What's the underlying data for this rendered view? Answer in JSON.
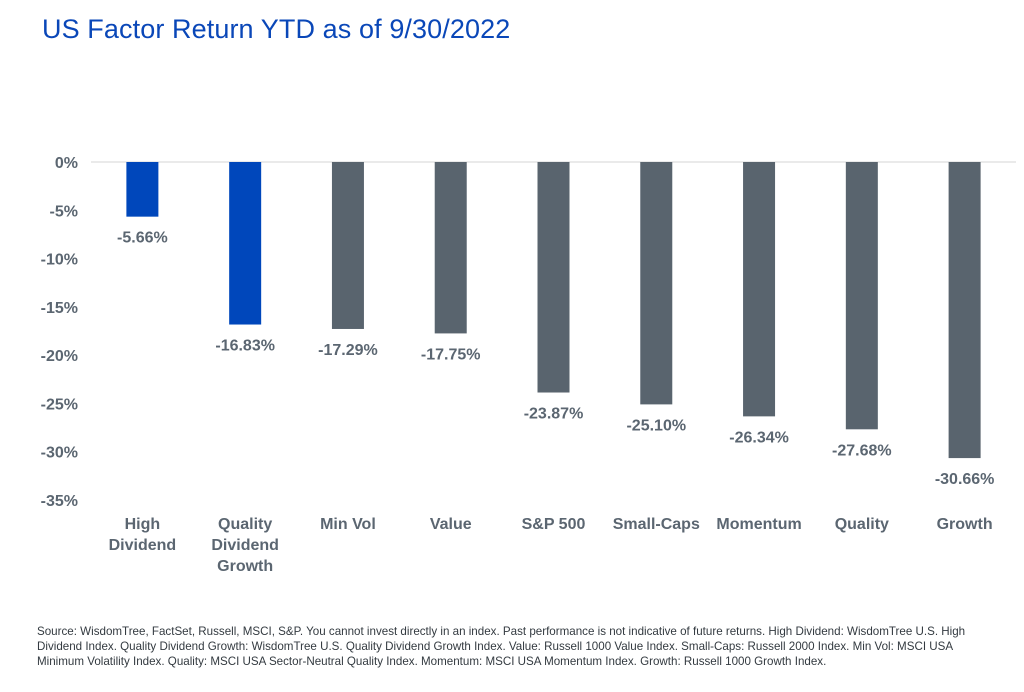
{
  "chart_data": {
    "type": "bar",
    "title": "US Factor Return YTD as of 9/30/2022",
    "xlabel": "",
    "ylabel": "",
    "ylim": [
      -35,
      0
    ],
    "yticks": [
      0,
      -5,
      -10,
      -15,
      -20,
      -25,
      -30,
      -35
    ],
    "ytick_labels": [
      "0%",
      "-5%",
      "-10%",
      "-15%",
      "-20%",
      "-25%",
      "-30%",
      "-35%"
    ],
    "grid": false,
    "legend": "none",
    "categories": [
      "High Dividend",
      "Quality Dividend Growth",
      "Min Vol",
      "Value",
      "S&P 500",
      "Small-Caps",
      "Momentum",
      "Quality",
      "Growth"
    ],
    "category_lines": [
      [
        "High",
        "Dividend"
      ],
      [
        "Quality",
        "Dividend",
        "Growth"
      ],
      [
        "Min Vol"
      ],
      [
        "Value"
      ],
      [
        "S&P 500"
      ],
      [
        "Small-Caps"
      ],
      [
        "Momentum"
      ],
      [
        "Quality"
      ],
      [
        "Growth"
      ]
    ],
    "values": [
      -5.66,
      -16.83,
      -17.29,
      -17.75,
      -23.87,
      -25.1,
      -26.34,
      -27.68,
      -30.66
    ],
    "data_labels": [
      "-5.66%",
      "-16.83%",
      "-17.29%",
      "-17.75%",
      "-23.87%",
      "-25.10%",
      "-26.34%",
      "-27.68%",
      "-30.66%"
    ],
    "bar_colors": [
      "#0047bb",
      "#0047bb",
      "#59646e",
      "#59646e",
      "#59646e",
      "#59646e",
      "#59646e",
      "#59646e",
      "#59646e"
    ]
  },
  "footnote": "Source: WisdomTree, FactSet, Russell, MSCI, S&P. You cannot invest directly in an index. Past performance is not indicative of future returns. High Dividend: WisdomTree U.S. High Dividend Index. Quality Dividend Growth: WisdomTree U.S. Quality Dividend Growth Index. Value: Russell 1000 Value Index. Small-Caps: Russell 2000 Index. Min Vol: MSCI USA Minimum Volatility Index. Quality: MSCI USA Sector-Neutral Quality Index. Momentum: MSCI USA Momentum Index. Growth: Russell 1000 Growth Index.",
  "colors": {
    "title": "#0a47b8",
    "highlight": "#0047bb",
    "neutral": "#59646e",
    "axis_text": "#5b6671",
    "baseline": "#e3e3e3"
  }
}
